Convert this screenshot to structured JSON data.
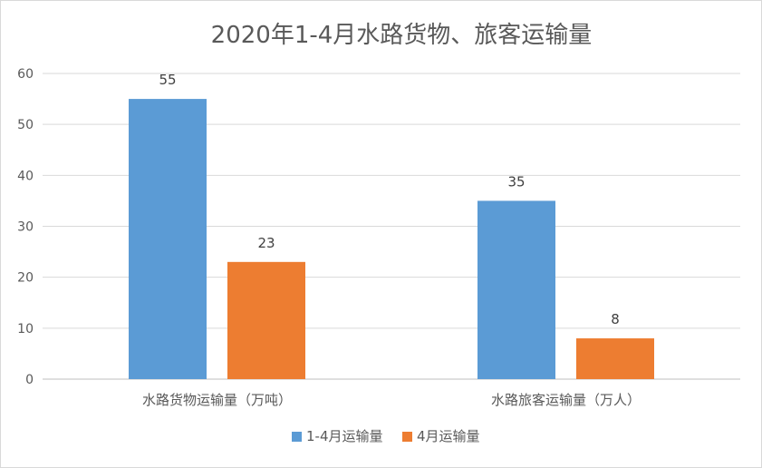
{
  "chart_data": {
    "type": "bar",
    "title": "2020年1-4月水路货物、旅客运输量",
    "categories": [
      "水路货物运输量（万吨）",
      "水路旅客运输量（万人）"
    ],
    "series": [
      {
        "name": "1-4月运输量",
        "values": [
          55,
          35
        ],
        "color": "#5B9BD5"
      },
      {
        "name": "4月运输量",
        "values": [
          23,
          8
        ],
        "color": "#ED7D31"
      }
    ],
    "ylim": [
      0,
      60
    ],
    "yticks": [
      0,
      10,
      20,
      30,
      40,
      50,
      60
    ],
    "grid": true,
    "legend_position": "bottom"
  }
}
